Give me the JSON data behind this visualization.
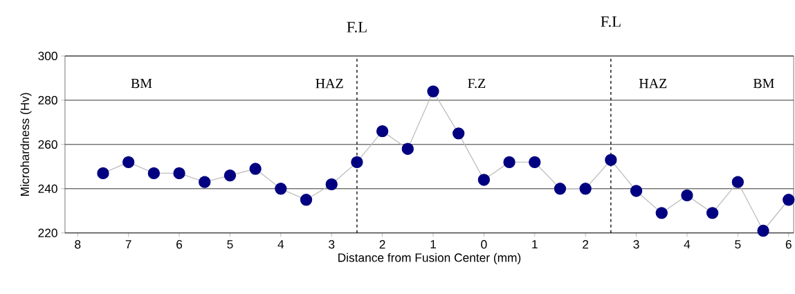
{
  "chart_data": {
    "type": "line",
    "xlabel": "Distance from Fusion Center (mm)",
    "ylabel": "Microhardness (Hv)",
    "x": [
      -7.5,
      -7,
      -6.5,
      -6,
      -5.5,
      -5,
      -4.5,
      -4,
      -3.5,
      -3,
      -2.5,
      -2,
      -1.5,
      -1,
      -0.5,
      0,
      0.5,
      1,
      1.5,
      2,
      2.5,
      3,
      3.5,
      4,
      4.5,
      5,
      5.5,
      6
    ],
    "series": [
      {
        "color": "#000080",
        "values": [
          247,
          252,
          247,
          247,
          243,
          246,
          249,
          240,
          235,
          242,
          252,
          266,
          258,
          284,
          265,
          244,
          252,
          252,
          240,
          240,
          253,
          239,
          229,
          237,
          229,
          243,
          221,
          235
        ]
      }
    ],
    "xlim": [
      -8.25,
      6.1
    ],
    "ylim": [
      220,
      300
    ],
    "xticks": [
      {
        "value": -8,
        "label": "8"
      },
      {
        "value": -7,
        "label": "7"
      },
      {
        "value": -6,
        "label": "6"
      },
      {
        "value": -5,
        "label": "5"
      },
      {
        "value": -4,
        "label": "4"
      },
      {
        "value": -3,
        "label": "3"
      },
      {
        "value": -2,
        "label": "2"
      },
      {
        "value": -1,
        "label": "1"
      },
      {
        "value": 0,
        "label": "0"
      },
      {
        "value": 1,
        "label": "1"
      },
      {
        "value": 2,
        "label": "2"
      },
      {
        "value": 3,
        "label": "3"
      },
      {
        "value": 4,
        "label": "4"
      },
      {
        "value": 5,
        "label": "5"
      },
      {
        "value": 6,
        "label": "6"
      }
    ],
    "yticks": [
      220,
      240,
      260,
      280,
      300
    ],
    "grid": "y",
    "marker": "circle",
    "line_style": "solid",
    "ref_lines": [
      {
        "axis": "x",
        "value": -2.5,
        "label": "F.L",
        "line_style": "dashed",
        "color": "#000000"
      },
      {
        "axis": "x",
        "value": 2.5,
        "label": "F.L",
        "line_style": "dashed",
        "color": "#000000"
      }
    ],
    "annotations": [
      "BM",
      "HAZ",
      "F.Z",
      "HAZ",
      "BM"
    ]
  }
}
